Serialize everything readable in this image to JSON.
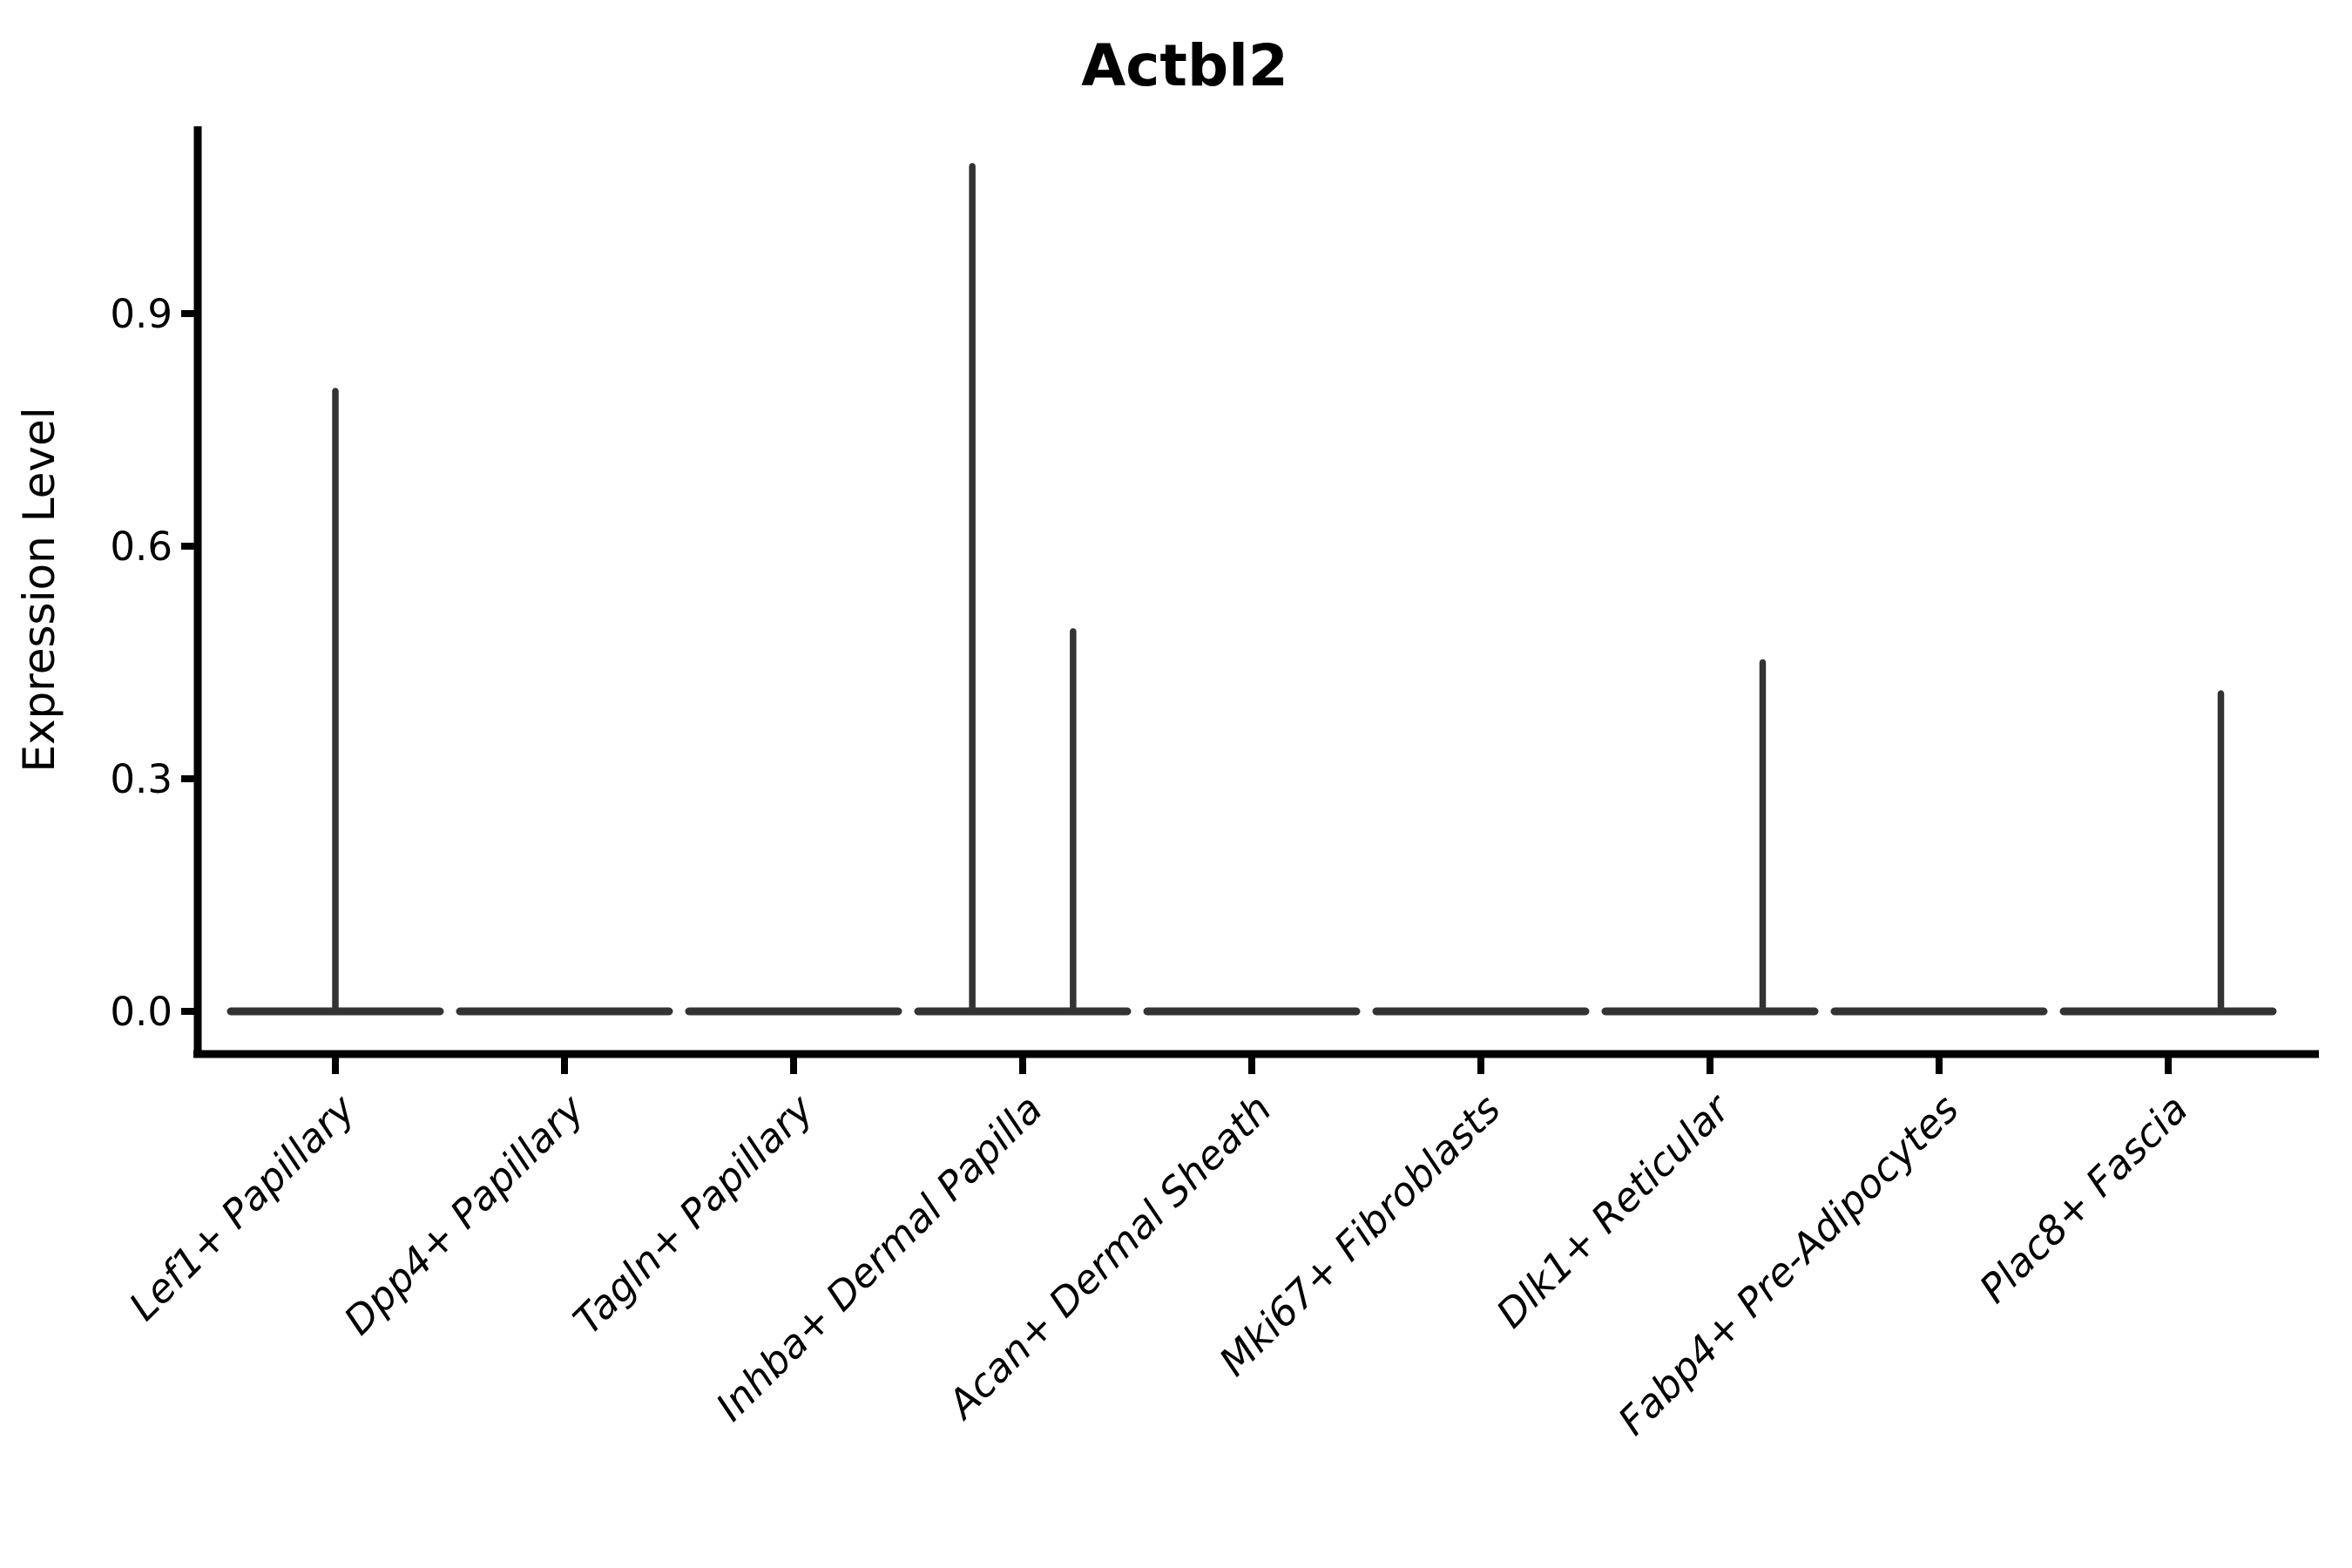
{
  "chart_data": {
    "type": "violin",
    "title": "Actbl2",
    "ylabel": "Expression Level",
    "xlabel": "",
    "categories": [
      "Lef1+ Papillary",
      "Dpp4+ Papillary",
      "Tagln+ Papillary",
      "Inhba+ Dermal Papilla",
      "Acan+ Dermal Sheath",
      "Mki67+ Fibroblasts",
      "Dlk1+ Reticular",
      "Fabp4+ Pre-Adipocytes",
      "Plac8+ Fascia"
    ],
    "ytick_labels": [
      "0.0",
      "0.3",
      "0.6",
      "0.9"
    ],
    "ytick_values": [
      0.0,
      0.3,
      0.6,
      0.9
    ],
    "ylim": [
      -0.055,
      1.142
    ],
    "baseline_value": 0.0,
    "grid": false,
    "legend": null,
    "series": [
      {
        "category": "Lef1+ Papillary",
        "max_expression": 0.8,
        "spikes": [
          {
            "offset_frac": 0.0,
            "peak": 0.8
          }
        ]
      },
      {
        "category": "Dpp4+ Papillary",
        "max_expression": 0.0,
        "spikes": []
      },
      {
        "category": "Tagln+ Papillary",
        "max_expression": 0.0,
        "spikes": []
      },
      {
        "category": "Inhba+ Dermal Papilla",
        "max_expression": 1.09,
        "spikes": [
          {
            "offset_frac": -0.22,
            "peak": 1.09
          },
          {
            "offset_frac": 0.22,
            "peak": 0.49
          }
        ]
      },
      {
        "category": "Acan+ Dermal Sheath",
        "max_expression": 0.0,
        "spikes": []
      },
      {
        "category": "Mki67+ Fibroblasts",
        "max_expression": 0.0,
        "spikes": []
      },
      {
        "category": "Dlk1+ Reticular",
        "max_expression": 0.45,
        "spikes": [
          {
            "offset_frac": 0.23,
            "peak": 0.45
          }
        ]
      },
      {
        "category": "Fabp4+ Pre-Adipocytes",
        "max_expression": 0.0,
        "spikes": []
      },
      {
        "category": "Plac8+ Fascia",
        "max_expression": 0.41,
        "spikes": [
          {
            "offset_frac": 0.23,
            "peak": 0.41
          }
        ]
      }
    ],
    "colors": {
      "violin": "#333333",
      "axis": "#000000",
      "text": "#000000",
      "background": "#ffffff"
    }
  }
}
